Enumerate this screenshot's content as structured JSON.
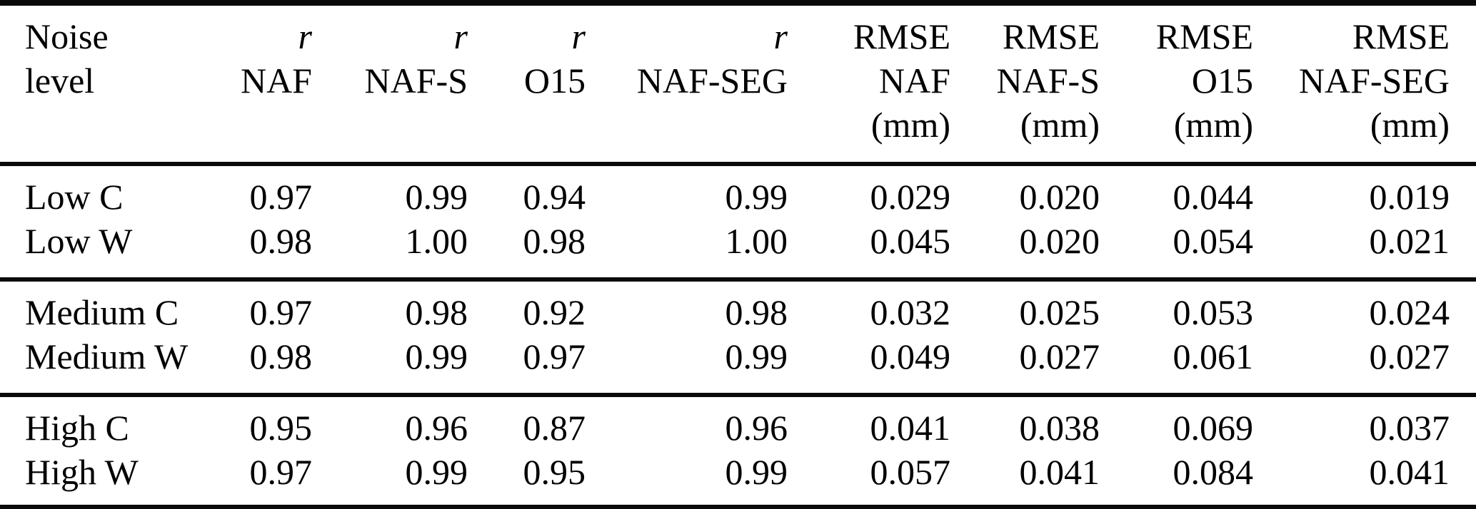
{
  "table": {
    "header": {
      "cols": [
        {
          "line1": "Noise",
          "line2": "level",
          "line3": ""
        },
        {
          "line1": "r",
          "line2": "NAF",
          "line3": ""
        },
        {
          "line1": "r",
          "line2": "NAF-S",
          "line3": ""
        },
        {
          "line1": "r",
          "line2": "O15",
          "line3": ""
        },
        {
          "line1": "r",
          "line2": "NAF-SEG",
          "line3": ""
        },
        {
          "line1": "RMSE",
          "line2": "NAF",
          "line3": "(mm)"
        },
        {
          "line1": "RMSE",
          "line2": "NAF-S",
          "line3": "(mm)"
        },
        {
          "line1": "RMSE",
          "line2": "O15",
          "line3": "(mm)"
        },
        {
          "line1": "RMSE",
          "line2": "NAF-SEG",
          "line3": "(mm)"
        }
      ]
    },
    "groups": [
      {
        "rows": [
          {
            "label": "Low C",
            "values": [
              "0.97",
              "0.99",
              "0.94",
              "0.99",
              "0.029",
              "0.020",
              "0.044",
              "0.019"
            ]
          },
          {
            "label": "Low W",
            "values": [
              "0.98",
              "1.00",
              "0.98",
              "1.00",
              "0.045",
              "0.020",
              "0.054",
              "0.021"
            ]
          }
        ]
      },
      {
        "rows": [
          {
            "label": "Medium C",
            "values": [
              "0.97",
              "0.98",
              "0.92",
              "0.98",
              "0.032",
              "0.025",
              "0.053",
              "0.024"
            ]
          },
          {
            "label": "Medium W",
            "values": [
              "0.98",
              "0.99",
              "0.97",
              "0.99",
              "0.049",
              "0.027",
              "0.061",
              "0.027"
            ]
          }
        ]
      },
      {
        "rows": [
          {
            "label": "High C",
            "values": [
              "0.95",
              "0.96",
              "0.87",
              "0.96",
              "0.041",
              "0.038",
              "0.069",
              "0.037"
            ]
          },
          {
            "label": "High W",
            "values": [
              "0.97",
              "0.99",
              "0.95",
              "0.99",
              "0.057",
              "0.041",
              "0.084",
              "0.041"
            ]
          }
        ]
      }
    ],
    "colors": {
      "rule": "#0a0a0a",
      "text": "#000000",
      "background": "#ffffff"
    }
  }
}
